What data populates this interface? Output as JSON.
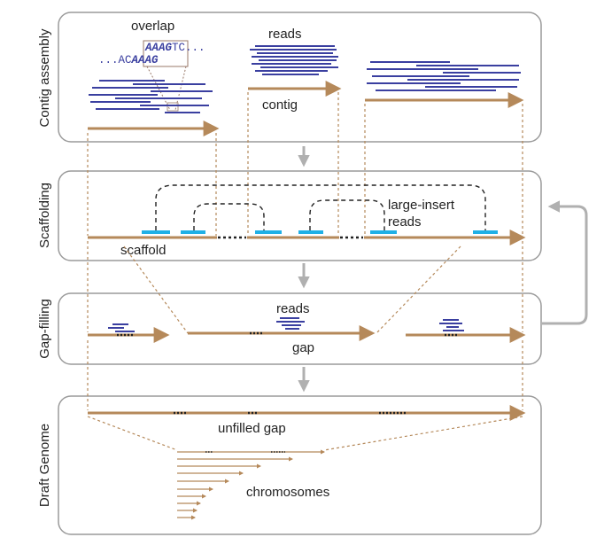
{
  "panels": {
    "contig": {
      "title": "Contig assembly"
    },
    "scaffold": {
      "title": "Scaffolding"
    },
    "gapfill": {
      "title": "Gap-filling"
    },
    "draft": {
      "title": "Draft Genome"
    }
  },
  "labels": {
    "overlap": "overlap",
    "overlap_seq_top_bold": "AAAG",
    "overlap_seq_top_tail": "TC...",
    "overlap_seq_bottom_lead": "...AC",
    "overlap_seq_bottom_bold": "AAAG",
    "reads_contig": "reads",
    "contig": "contig",
    "large_insert_1": "large-insert",
    "large_insert_2": "reads",
    "scaffold": "scaffold",
    "reads_gapfill": "reads",
    "gap": "gap",
    "unfilled_gap": "unfilled gap",
    "chromosomes": "chromosomes"
  },
  "colors": {
    "read_blue": "#3a3fa0",
    "contig_brown": "#b5895a",
    "mate_cyan": "#1fb0e6",
    "panel_border": "#9a9a9a",
    "flow_arrow": "#b0b0b0",
    "text": "#222222"
  }
}
